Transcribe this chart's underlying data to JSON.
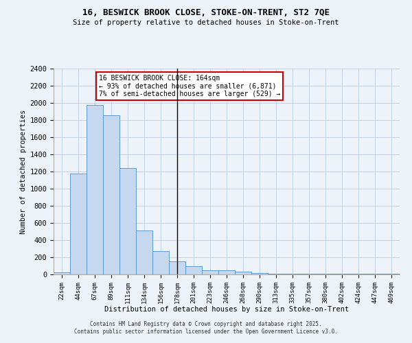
{
  "title1": "16, BESWICK BROOK CLOSE, STOKE-ON-TRENT, ST2 7QE",
  "title2": "Size of property relative to detached houses in Stoke-on-Trent",
  "xlabel": "Distribution of detached houses by size in Stoke-on-Trent",
  "ylabel": "Number of detached properties",
  "categories": [
    "22sqm",
    "44sqm",
    "67sqm",
    "89sqm",
    "111sqm",
    "134sqm",
    "156sqm",
    "178sqm",
    "201sqm",
    "223sqm",
    "246sqm",
    "268sqm",
    "290sqm",
    "313sqm",
    "335sqm",
    "357sqm",
    "380sqm",
    "402sqm",
    "424sqm",
    "447sqm",
    "469sqm"
  ],
  "values": [
    25,
    1175,
    1980,
    1860,
    1240,
    510,
    270,
    155,
    95,
    45,
    45,
    30,
    15,
    7,
    5,
    5,
    5,
    5,
    5,
    5,
    5
  ],
  "bar_color": "#c5d8f0",
  "bar_edge_color": "#5b9bd5",
  "vline_x": 7,
  "vline_color": "#000000",
  "annotation_title": "16 BESWICK BROOK CLOSE: 164sqm",
  "annotation_line1": "← 93% of detached houses are smaller (6,871)",
  "annotation_line2": "7% of semi-detached houses are larger (529) →",
  "annotation_box_color": "#ffffff",
  "annotation_box_edge": "#cc0000",
  "footer1": "Contains HM Land Registry data © Crown copyright and database right 2025.",
  "footer2": "Contains public sector information licensed under the Open Government Licence v3.0.",
  "bg_color": "#eef3fa",
  "ylim": [
    0,
    2400
  ],
  "yticks": [
    0,
    200,
    400,
    600,
    800,
    1000,
    1200,
    1400,
    1600,
    1800,
    2000,
    2200,
    2400
  ]
}
